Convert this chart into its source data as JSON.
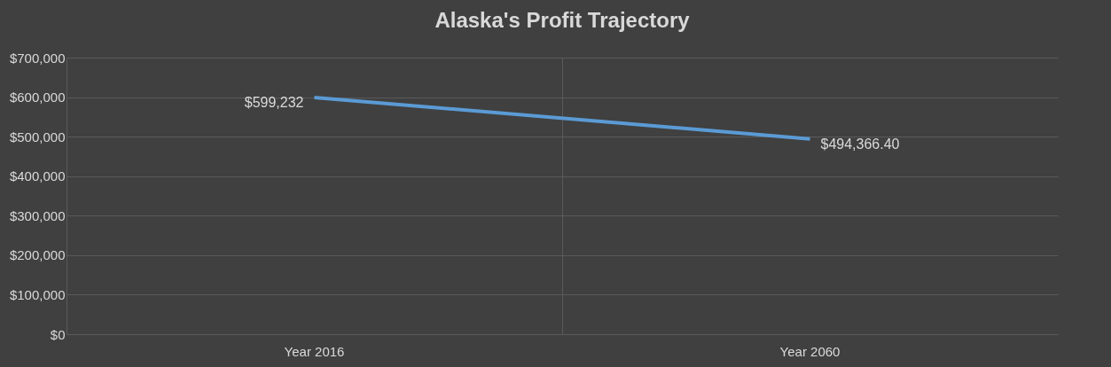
{
  "chart_data": {
    "type": "line",
    "title": "Alaska's Profit Trajectory",
    "categories": [
      "Year 2016",
      "Year 2060"
    ],
    "series": [
      {
        "color": "#5b9bd5",
        "values": [
          599232,
          494366.4
        ],
        "value_labels": [
          "$599,232",
          "$494,366.40"
        ]
      }
    ],
    "ylim": [
      0,
      700000
    ],
    "yticks": [
      {
        "value": 0,
        "label": "$0"
      },
      {
        "value": 100000,
        "label": "$100,000"
      },
      {
        "value": 200000,
        "label": "$200,000"
      },
      {
        "value": 300000,
        "label": "$300,000"
      },
      {
        "value": 400000,
        "label": "$400,000"
      },
      {
        "value": 500000,
        "label": "$500,000"
      },
      {
        "value": 600000,
        "label": "$600,000"
      },
      {
        "value": 700000,
        "label": "$700,000"
      }
    ],
    "grid": true,
    "legend": false,
    "marker": "none",
    "line_style": "solid"
  }
}
